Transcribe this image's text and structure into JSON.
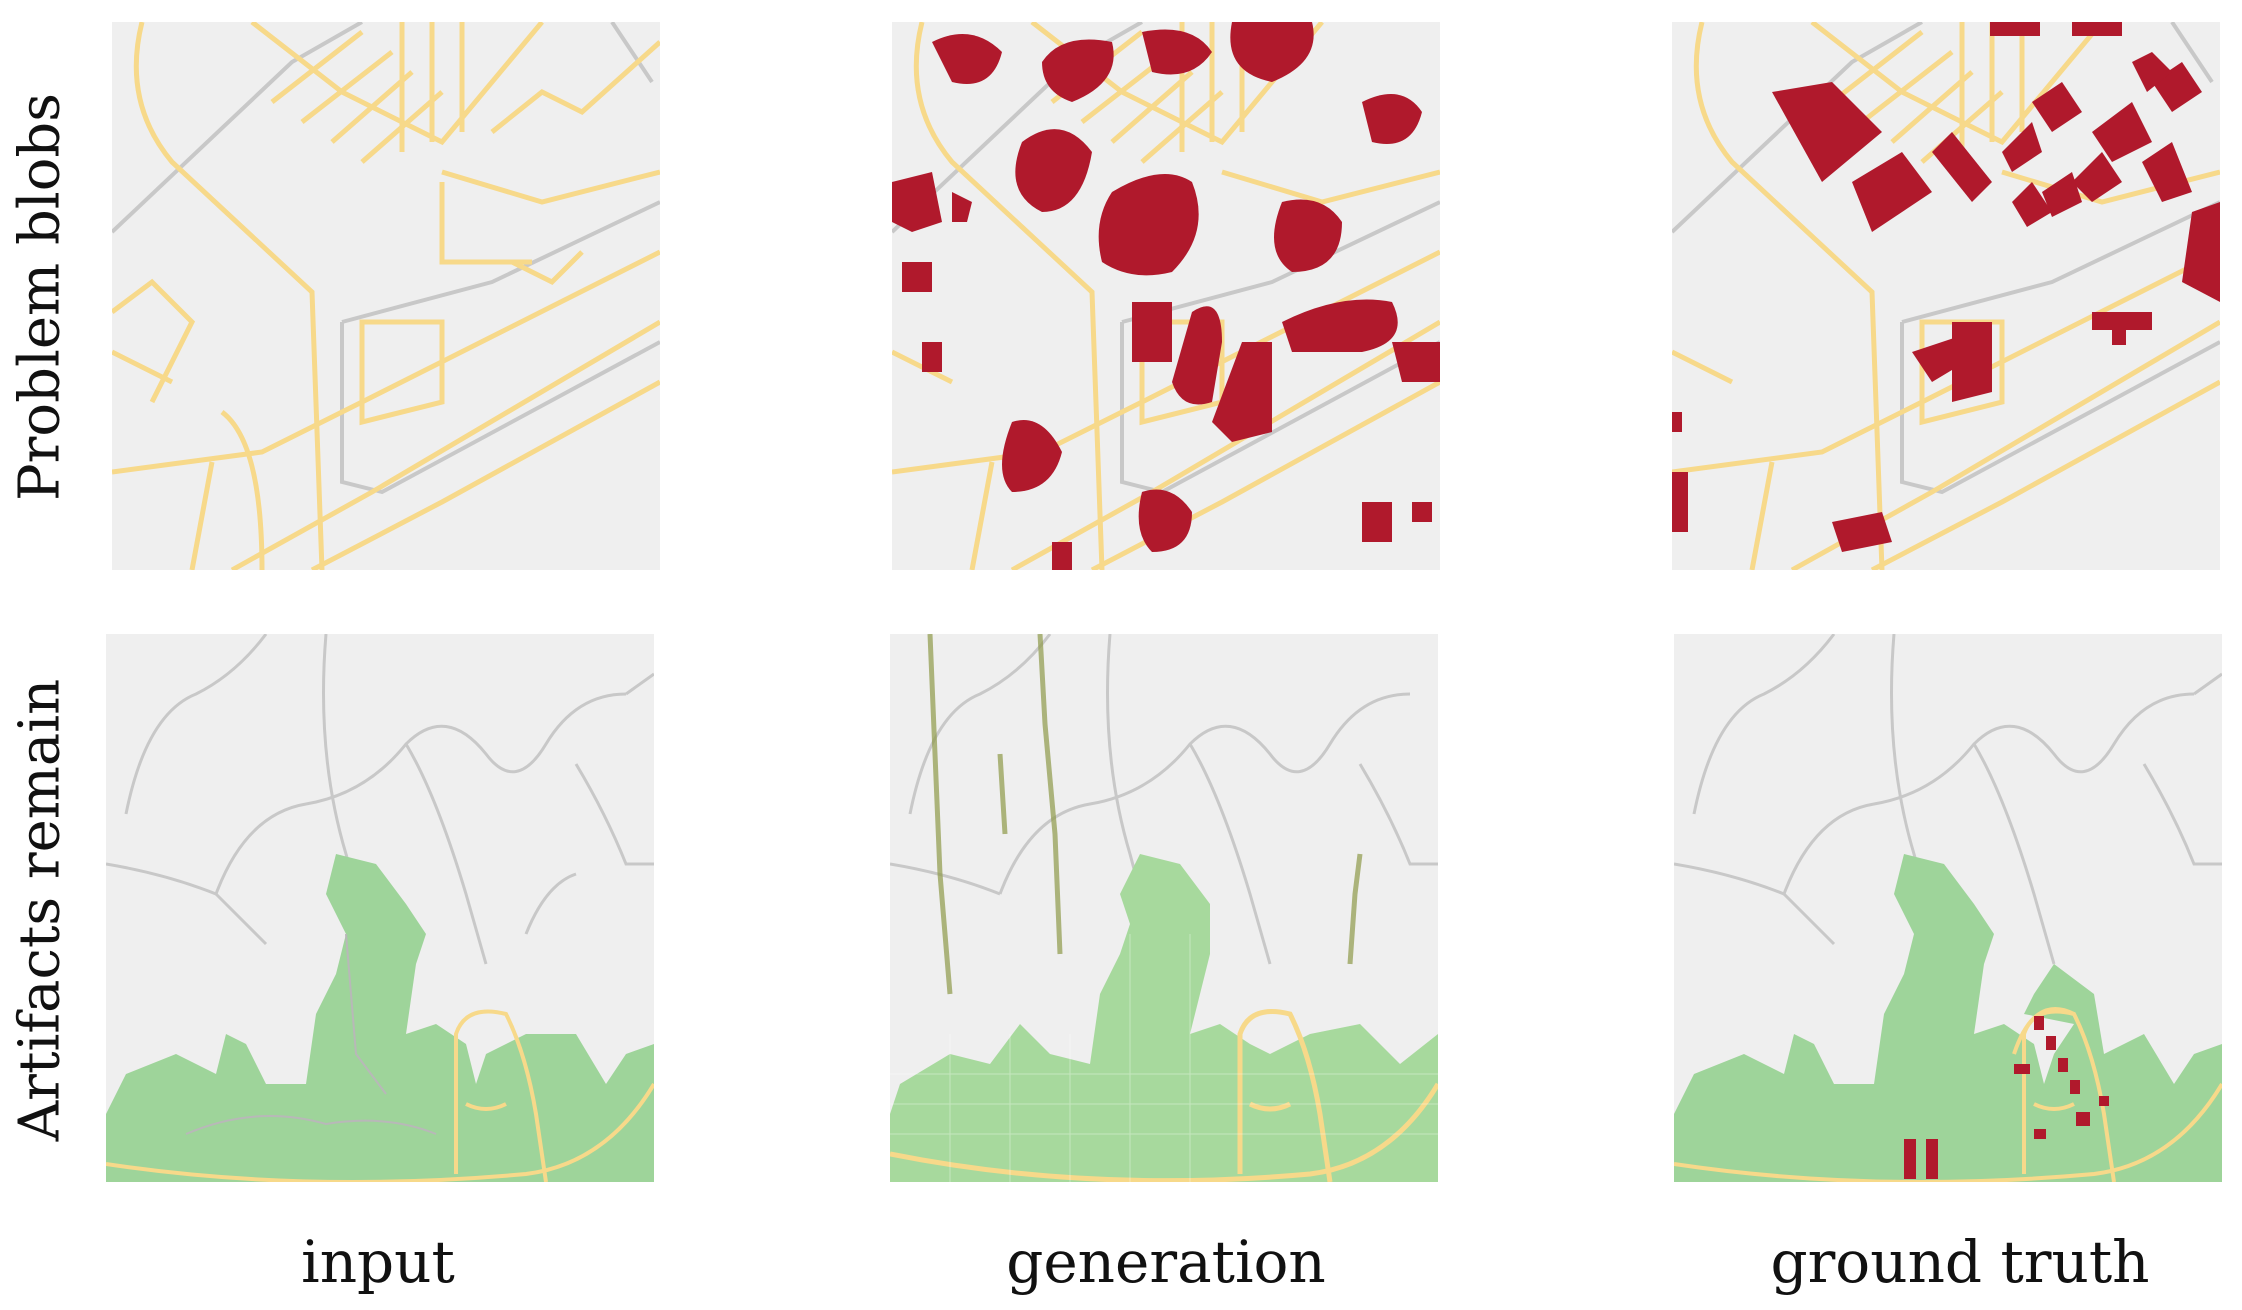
{
  "figure": {
    "rows": [
      {
        "label": "Problem blobs"
      },
      {
        "label": "Artifacts remain"
      }
    ],
    "columns": [
      {
        "label": "input"
      },
      {
        "label": "generation"
      },
      {
        "label": "ground truth"
      }
    ],
    "palette": {
      "background": "#efefef",
      "road_major": "#f7d98a",
      "road_minor": "#c8c8c8",
      "building": "#b0192c",
      "park": "#9ed49a",
      "park_generated": "#a7d99d"
    }
  }
}
